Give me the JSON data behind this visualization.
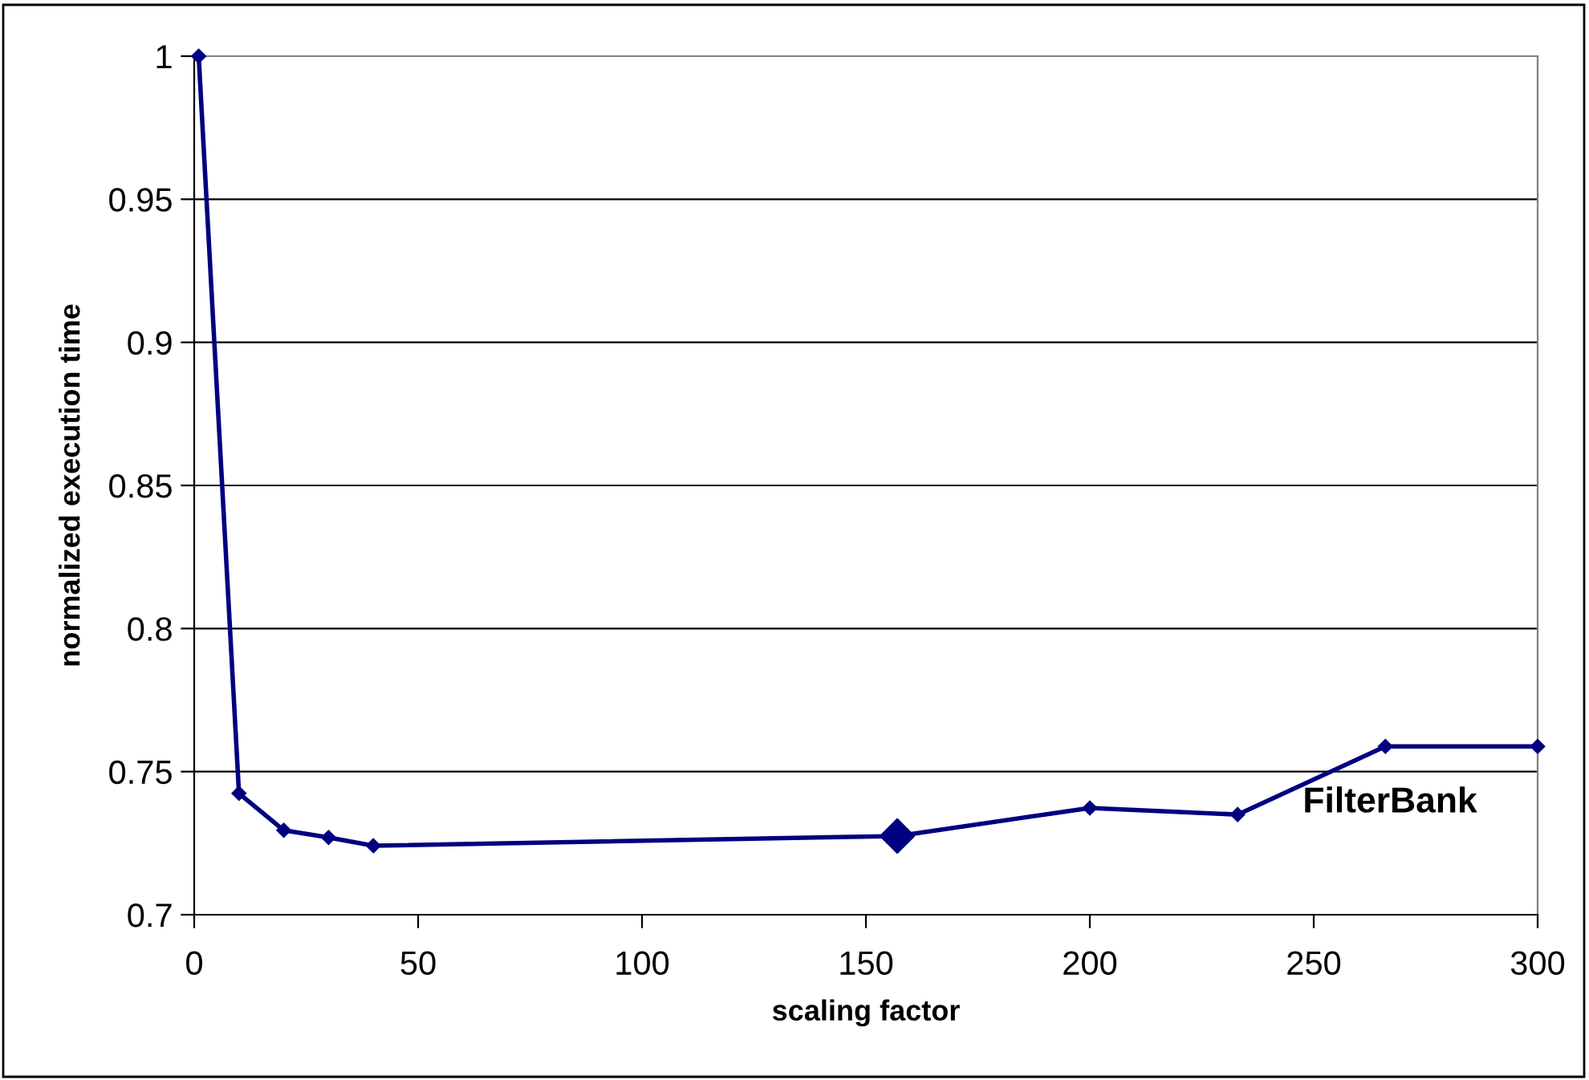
{
  "chart_data": {
    "type": "line",
    "xlabel": "scaling factor",
    "ylabel": "normalized execution time",
    "annotations": [
      "FilterBank"
    ],
    "series": [
      {
        "color": "#000080",
        "marker": "diamond",
        "x": [
          1,
          10,
          20,
          30,
          40,
          157,
          200,
          233,
          266,
          300
        ],
        "values": [
          1.0,
          0.7424,
          0.7295,
          0.727,
          0.7241,
          0.7275,
          0.7373,
          0.735,
          0.7588,
          0.7588
        ]
      },
      {
        "type": "scatter",
        "color": "#000080",
        "marker": "diamond",
        "x": [
          157
        ],
        "values": [
          0.7275
        ]
      }
    ],
    "xlim": [
      0,
      300
    ],
    "xticks": [
      0,
      50,
      100,
      150,
      200,
      250,
      300
    ],
    "ylim": [
      0.7,
      1
    ],
    "yticks": [
      0.7,
      0.75,
      0.8,
      0.85,
      0.9,
      0.95,
      1
    ],
    "grid": "y",
    "legend": false
  }
}
